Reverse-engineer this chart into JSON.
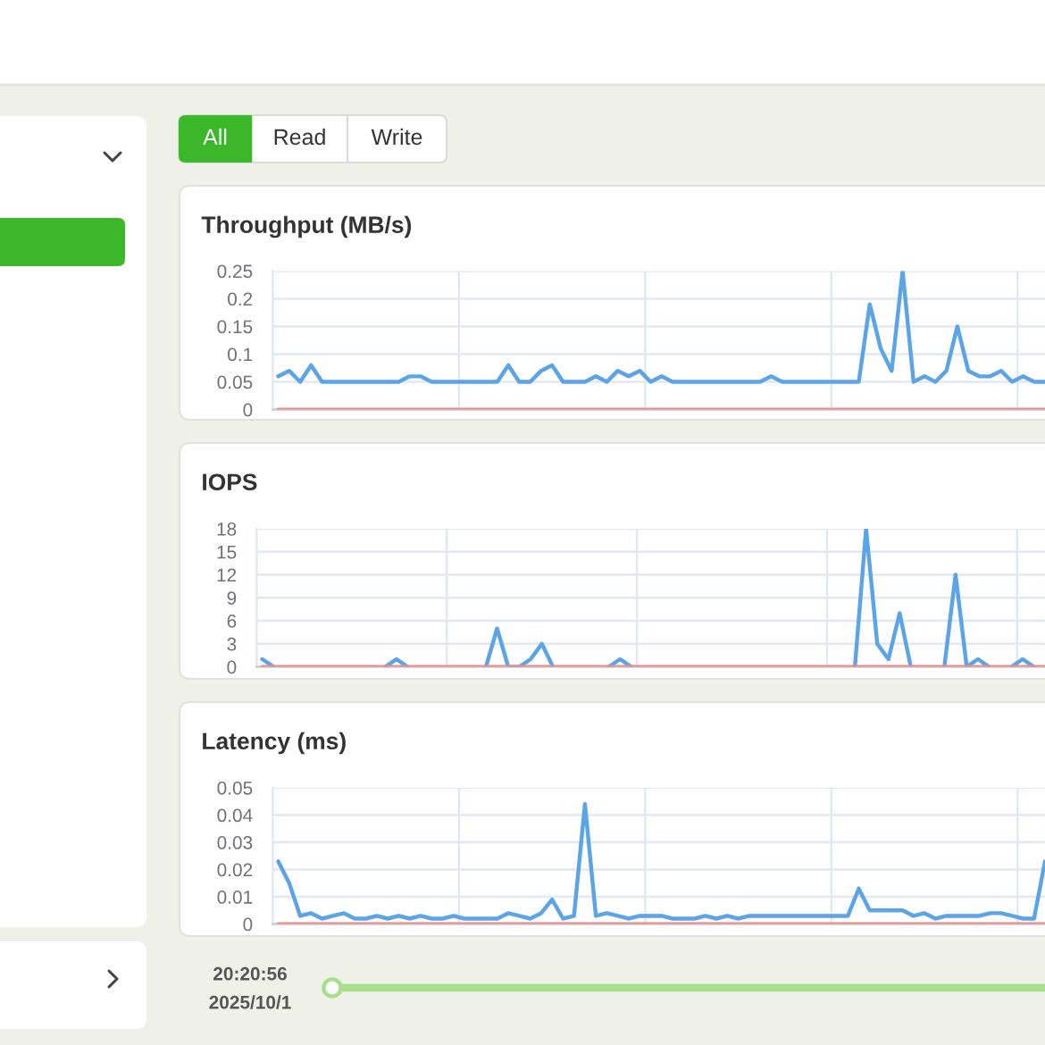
{
  "chart_data": [
    {
      "type": "line",
      "title": "Throughput (MB/s)",
      "categories": [
        null,
        null,
        null,
        null,
        null,
        null,
        null,
        null,
        null,
        null,
        null,
        null,
        null,
        null,
        null,
        null,
        null,
        null,
        null,
        null,
        null,
        null,
        null,
        null,
        null,
        null,
        null,
        null,
        null,
        null,
        null,
        null,
        null,
        null,
        null,
        null,
        null,
        null,
        null,
        null,
        null,
        null,
        null,
        null,
        null,
        null,
        null,
        null,
        null,
        null,
        null,
        null,
        null,
        null,
        null,
        null,
        null,
        null,
        null,
        null,
        null,
        null,
        null,
        null,
        null,
        null,
        null,
        null,
        null,
        null,
        null
      ],
      "series": [
        {
          "color": "#5ba4e6",
          "values": [
            0.06,
            0.07,
            0.05,
            0.08,
            0.05,
            0.05,
            0.05,
            0.05,
            0.05,
            0.05,
            0.05,
            0.05,
            0.06,
            0.06,
            0.05,
            0.05,
            0.05,
            0.05,
            0.05,
            0.05,
            0.05,
            0.08,
            0.05,
            0.05,
            0.07,
            0.08,
            0.05,
            0.05,
            0.05,
            0.06,
            0.05,
            0.07,
            0.06,
            0.07,
            0.05,
            0.06,
            0.05,
            0.05,
            0.05,
            0.05,
            0.05,
            0.05,
            0.05,
            0.05,
            0.05,
            0.06,
            0.05,
            0.05,
            0.05,
            0.05,
            0.05,
            0.05,
            0.05,
            0.05,
            0.19,
            0.11,
            0.07,
            0.25,
            0.05,
            0.06,
            0.05,
            0.07,
            0.15,
            0.07,
            0.06,
            0.06,
            0.07,
            0.05,
            0.06,
            0.05,
            0.05
          ]
        },
        {
          "color": "#f08a8a",
          "values": [
            0,
            0,
            0,
            0,
            0,
            0,
            0,
            0,
            0,
            0,
            0,
            0,
            0,
            0,
            0,
            0,
            0,
            0,
            0,
            0,
            0,
            0,
            0,
            0,
            0,
            0,
            0,
            0,
            0,
            0,
            0,
            0,
            0,
            0,
            0,
            0,
            0,
            0,
            0,
            0,
            0,
            0,
            0,
            0,
            0,
            0,
            0,
            0,
            0,
            0,
            0,
            0,
            0,
            0,
            0,
            0,
            0,
            0,
            0,
            0,
            0,
            0,
            0,
            0,
            0,
            0,
            0,
            0,
            0,
            0,
            0
          ]
        }
      ],
      "ylim": [
        0,
        0.25
      ],
      "yticks": [
        0,
        0.05,
        0.1,
        0.15,
        0.2,
        0.25
      ],
      "grid": true,
      "tick_labels": "y",
      "annotations": [
        "All",
        "Read",
        "Write"
      ]
    },
    {
      "type": "line",
      "title": "IOPS",
      "categories": [
        null,
        null,
        null,
        null,
        null,
        null,
        null,
        null,
        null,
        null,
        null,
        null,
        null,
        null,
        null,
        null,
        null,
        null,
        null,
        null,
        null,
        null,
        null,
        null,
        null,
        null,
        null,
        null,
        null,
        null,
        null,
        null,
        null,
        null,
        null,
        null,
        null,
        null,
        null,
        null,
        null,
        null,
        null,
        null,
        null,
        null,
        null,
        null,
        null,
        null,
        null,
        null,
        null,
        null,
        null,
        null,
        null,
        null,
        null,
        null,
        null,
        null,
        null,
        null,
        null,
        null,
        null,
        null,
        null,
        null,
        null
      ],
      "series": [
        {
          "color": "#5ba4e6",
          "values": [
            1,
            0,
            null,
            null,
            null,
            null,
            null,
            null,
            null,
            null,
            null,
            0,
            1,
            0,
            null,
            null,
            null,
            null,
            null,
            null,
            0,
            5,
            0,
            0,
            1,
            3,
            0,
            null,
            null,
            null,
            null,
            0,
            1,
            0,
            null,
            null,
            null,
            null,
            null,
            null,
            null,
            null,
            null,
            null,
            null,
            null,
            null,
            null,
            null,
            null,
            null,
            null,
            null,
            0,
            18,
            3,
            1,
            7,
            0,
            null,
            null,
            0,
            12,
            0,
            1,
            0,
            null,
            0,
            1,
            0,
            null
          ]
        },
        {
          "color": "#f08a8a",
          "values": [
            0,
            0,
            0,
            0,
            0,
            0,
            0,
            0,
            0,
            0,
            0,
            0,
            0,
            0,
            0,
            0,
            0,
            0,
            0,
            0,
            0,
            0,
            0,
            0,
            0,
            0,
            0,
            0,
            0,
            0,
            0,
            0,
            0,
            0,
            0,
            0,
            0,
            0,
            0,
            0,
            0,
            0,
            0,
            0,
            0,
            0,
            0,
            0,
            0,
            0,
            0,
            0,
            0,
            0,
            0,
            0,
            0,
            0,
            0,
            0,
            0,
            0,
            0,
            0,
            0,
            0,
            0,
            0,
            0,
            0,
            0
          ]
        }
      ],
      "ylim": [
        0,
        18
      ],
      "yticks": [
        0,
        3,
        6,
        9,
        12,
        15,
        18
      ],
      "grid": true,
      "tick_labels": "y"
    },
    {
      "type": "line",
      "title": "Latency (ms)",
      "categories": [
        null,
        null,
        null,
        null,
        null,
        null,
        null,
        null,
        null,
        null,
        null,
        null,
        null,
        null,
        null,
        null,
        null,
        null,
        null,
        null,
        null,
        null,
        null,
        null,
        null,
        null,
        null,
        null,
        null,
        null,
        null,
        null,
        null,
        null,
        null,
        null,
        null,
        null,
        null,
        null,
        null,
        null,
        null,
        null,
        null,
        null,
        null,
        null,
        null,
        null,
        null,
        null,
        null,
        null,
        null,
        null,
        null,
        null,
        null,
        null,
        null,
        null,
        null,
        null,
        null,
        null,
        null,
        null,
        null,
        null,
        null
      ],
      "series": [
        {
          "color": "#5ba4e6",
          "values": [
            0.023,
            0.015,
            0.003,
            0.004,
            0.002,
            0.003,
            0.004,
            0.002,
            0.002,
            0.003,
            0.002,
            0.003,
            0.002,
            0.003,
            0.002,
            0.002,
            0.003,
            0.002,
            0.002,
            0.002,
            0.002,
            0.004,
            0.003,
            0.002,
            0.004,
            0.009,
            0.002,
            0.003,
            0.044,
            0.003,
            0.004,
            0.003,
            0.002,
            0.003,
            0.003,
            0.003,
            0.002,
            0.002,
            0.002,
            0.003,
            0.002,
            0.003,
            0.002,
            0.003,
            0.003,
            0.003,
            0.003,
            0.003,
            0.003,
            0.003,
            0.003,
            0.003,
            0.003,
            0.013,
            0.005,
            0.005,
            0.005,
            0.005,
            0.003,
            0.004,
            0.002,
            0.003,
            0.003,
            0.003,
            0.003,
            0.004,
            0.004,
            0.003,
            0.002,
            0.002,
            0.023
          ]
        },
        {
          "color": "#f08a8a",
          "values": [
            0,
            0,
            0,
            0,
            0,
            0,
            0,
            0,
            0,
            0,
            0,
            0,
            0,
            0,
            0,
            0,
            0,
            0,
            0,
            0,
            0,
            0,
            0,
            0,
            0,
            0,
            0,
            0,
            0,
            0,
            0,
            0,
            0,
            0,
            0,
            0,
            0,
            0,
            0,
            0,
            0,
            0,
            0,
            0,
            0,
            0,
            0,
            0,
            0,
            0,
            0,
            0,
            0,
            0,
            0,
            0,
            0,
            0,
            0,
            0,
            0,
            0,
            0,
            0,
            0,
            0,
            0,
            0,
            0,
            0,
            0
          ]
        }
      ],
      "ylim": [
        0,
        0.05
      ],
      "yticks": [
        0,
        0.01,
        0.02,
        0.03,
        0.04,
        0.05
      ],
      "grid": true,
      "tick_labels": "y",
      "annotations": [
        "20:20:56",
        "2025/10/1"
      ]
    }
  ]
}
